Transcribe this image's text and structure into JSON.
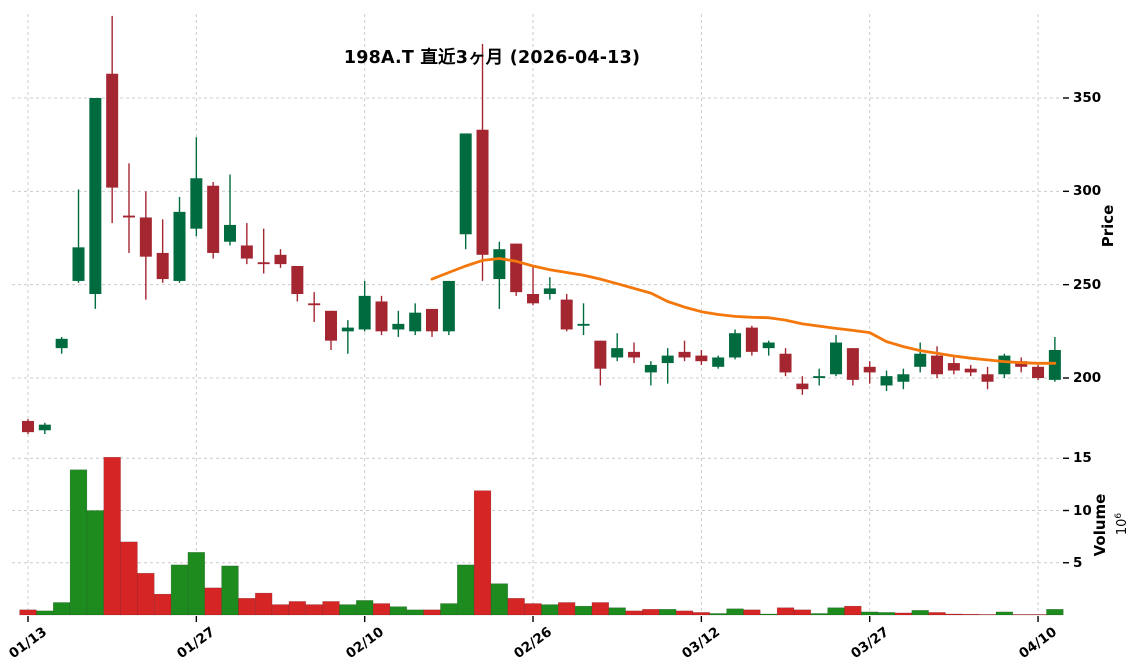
{
  "title": "198A.T 直近3ヶ月 (2026-04-13)",
  "colors": {
    "candle_up": "#006B3E",
    "candle_down": "#A42631",
    "volume_up": "#1D8B1D",
    "volume_down": "#D52525",
    "ma_line": "#F4770B",
    "grid": "#CCCCCC",
    "text": "#000000"
  },
  "axes": {
    "price_label": "Price",
    "volume_label": "Volume",
    "volume_scale_base": "10",
    "volume_scale_exp": "6"
  },
  "chart_data": {
    "type": "candlestick",
    "title": "198A.T 直近3ヶ月 (2026-04-13)",
    "legend_position": "none",
    "grid": true,
    "price_axis": {
      "ticks": [
        350,
        300,
        250,
        200
      ],
      "side": "right",
      "approx_range": [
        165,
        395
      ]
    },
    "volume_axis": {
      "ticks": [
        15,
        10,
        5
      ],
      "unit_exponent": "10^6",
      "side": "right",
      "approx_range": [
        0,
        16.4
      ]
    },
    "x_axis": {
      "tick_labels": [
        "01/13",
        "01/27",
        "02/10",
        "02/26",
        "03/12",
        "03/27",
        "04/10"
      ],
      "tick_indices": [
        0,
        10,
        20,
        30,
        40,
        50,
        60
      ]
    },
    "dates": [
      "01/13",
      "01/14",
      "01/15",
      "01/16",
      "01/19",
      "01/20",
      "01/21",
      "01/22",
      "01/23",
      "01/26",
      "01/27",
      "01/28",
      "01/29",
      "01/30",
      "02/02",
      "02/03",
      "02/04",
      "02/05",
      "02/06",
      "02/09",
      "02/10",
      "02/12",
      "02/13",
      "02/16",
      "02/17",
      "02/18",
      "02/19",
      "02/20",
      "02/24",
      "02/25",
      "02/26",
      "02/27",
      "03/02",
      "03/03",
      "03/04",
      "03/05",
      "03/06",
      "03/09",
      "03/10",
      "03/11",
      "03/12",
      "03/13",
      "03/16",
      "03/17",
      "03/18",
      "03/19",
      "03/23",
      "03/24",
      "03/25",
      "03/26",
      "03/27",
      "03/30",
      "03/31",
      "04/01",
      "04/02",
      "04/03",
      "04/06",
      "04/07",
      "04/08",
      "04/09",
      "04/10",
      "04/13"
    ],
    "ohlc": [
      [
        177,
        178,
        170,
        171
      ],
      [
        172,
        176,
        170,
        175
      ],
      [
        216,
        222,
        213,
        221
      ],
      [
        252,
        301,
        251,
        270
      ],
      [
        245,
        350,
        237,
        350
      ],
      [
        363,
        394,
        283,
        302
      ],
      [
        287,
        315,
        267,
        286
      ],
      [
        286,
        300,
        242,
        265
      ],
      [
        267,
        285,
        251,
        253
      ],
      [
        252,
        297,
        251,
        289
      ],
      [
        280,
        329,
        276,
        307
      ],
      [
        303,
        305,
        264,
        267
      ],
      [
        273,
        309,
        271,
        282
      ],
      [
        271,
        283,
        261,
        264
      ],
      [
        262,
        280,
        256,
        261
      ],
      [
        266,
        269,
        259,
        261
      ],
      [
        260,
        260,
        241,
        245
      ],
      [
        240,
        246,
        230,
        239
      ],
      [
        236,
        236,
        215,
        220
      ],
      [
        225,
        231,
        213,
        227
      ],
      [
        226,
        252,
        225,
        244
      ],
      [
        241,
        244,
        223,
        225
      ],
      [
        226,
        236,
        222,
        229
      ],
      [
        225,
        240,
        223,
        235
      ],
      [
        237,
        237,
        222,
        225
      ],
      [
        225,
        252,
        223,
        252
      ],
      [
        277,
        331,
        269,
        331
      ],
      [
        333,
        379,
        252,
        266
      ],
      [
        253,
        273,
        237,
        269
      ],
      [
        272,
        272,
        244,
        246
      ],
      [
        245,
        260,
        239,
        240
      ],
      [
        245,
        254,
        242,
        248
      ],
      [
        242,
        245,
        225,
        226
      ],
      [
        228,
        240,
        223,
        229
      ],
      [
        220,
        220,
        196,
        205
      ],
      [
        211,
        224,
        209,
        216
      ],
      [
        214,
        219,
        208,
        211
      ],
      [
        203,
        209,
        196,
        207
      ],
      [
        208,
        216,
        197,
        212
      ],
      [
        214,
        220,
        209,
        211
      ],
      [
        212,
        215,
        207,
        209
      ],
      [
        206,
        212,
        205,
        211
      ],
      [
        211,
        226,
        210,
        224
      ],
      [
        227,
        228,
        212,
        214
      ],
      [
        216,
        220,
        212,
        219
      ],
      [
        213,
        216,
        201,
        203
      ],
      [
        197,
        201,
        191,
        194
      ],
      [
        200,
        205,
        196,
        201
      ],
      [
        202,
        223,
        201,
        219
      ],
      [
        216,
        216,
        196,
        199
      ],
      [
        206,
        209,
        197,
        203
      ],
      [
        196,
        204,
        193,
        201
      ],
      [
        198,
        205,
        194,
        202
      ],
      [
        206,
        219,
        203,
        213
      ],
      [
        212,
        217,
        200,
        202
      ],
      [
        208,
        211,
        202,
        204
      ],
      [
        205,
        207,
        201,
        203
      ],
      [
        202,
        206,
        194,
        198
      ],
      [
        202,
        213,
        200,
        212
      ],
      [
        209,
        211,
        203,
        206
      ],
      [
        206,
        207,
        199,
        200
      ],
      [
        199,
        222,
        198,
        215
      ]
    ],
    "volume_millions": [
      0.5,
      0.4,
      1.2,
      13.9,
      10.0,
      15.1,
      7.0,
      4.0,
      2.0,
      4.8,
      6.0,
      2.6,
      4.7,
      1.6,
      2.1,
      1.0,
      1.3,
      1.0,
      1.3,
      1.0,
      1.4,
      1.1,
      0.8,
      0.5,
      0.5,
      1.1,
      4.8,
      11.9,
      3.0,
      1.6,
      1.1,
      1.0,
      1.2,
      0.85,
      1.2,
      0.7,
      0.4,
      0.55,
      0.55,
      0.4,
      0.25,
      0.15,
      0.6,
      0.5,
      0.1,
      0.7,
      0.5,
      0.15,
      0.7,
      0.85,
      0.3,
      0.25,
      0.2,
      0.45,
      0.25,
      0.1,
      0.08,
      0.05,
      0.3,
      0.05,
      0.05,
      0.55
    ],
    "volume_colors": [
      "down",
      "up",
      "up",
      "up",
      "up",
      "down",
      "down",
      "down",
      "down",
      "up",
      "up",
      "down",
      "up",
      "down",
      "down",
      "down",
      "down",
      "down",
      "down",
      "up",
      "up",
      "down",
      "up",
      "up",
      "down",
      "up",
      "up",
      "down",
      "up",
      "down",
      "down",
      "up",
      "down",
      "up",
      "down",
      "up",
      "down",
      "down",
      "up",
      "down",
      "down",
      "up",
      "up",
      "down",
      "up",
      "down",
      "down",
      "up",
      "up",
      "down",
      "up",
      "up",
      "down",
      "up",
      "down",
      "down",
      "down",
      "down",
      "up",
      "down",
      "down",
      "up"
    ],
    "ma_line": {
      "name": "moving-average",
      "start_index": 24,
      "values": [
        253,
        256.5,
        260,
        263,
        264,
        262.5,
        260,
        258,
        256.5,
        255,
        253,
        250.5,
        248,
        245.5,
        241,
        238,
        235.5,
        234,
        233,
        232.5,
        232.3,
        231,
        229,
        227.8,
        226.6,
        225.5,
        224.3,
        219.5,
        216.8,
        214.7,
        213.3,
        211.8,
        210.6,
        209.7,
        208.8,
        208.2,
        207.9,
        207.9
      ]
    }
  }
}
